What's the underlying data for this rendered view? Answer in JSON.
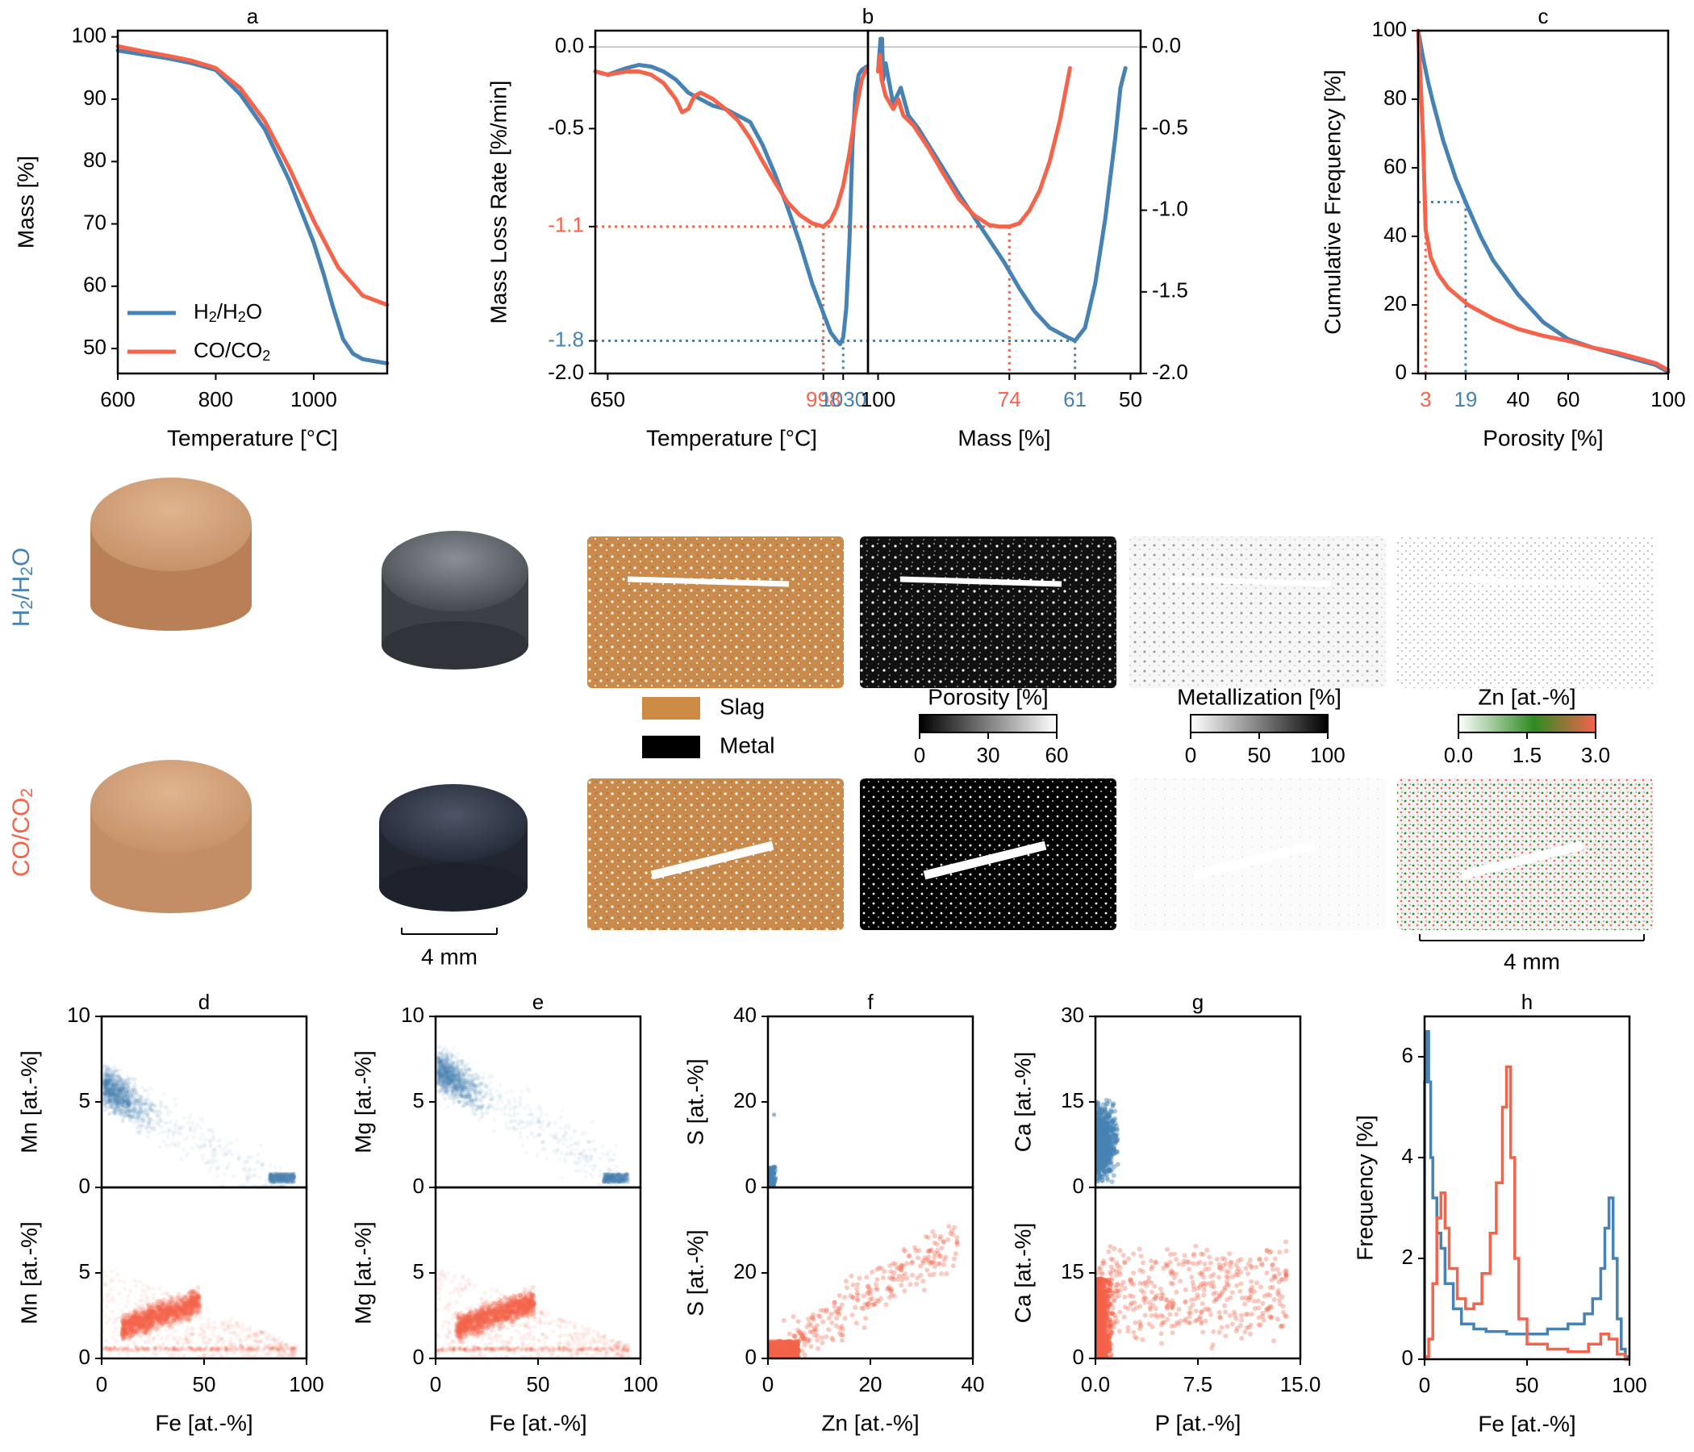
{
  "colors": {
    "h2": "#4682b4",
    "co": "#f4634a",
    "axis": "#000000",
    "slag": "#cd8a45",
    "metal": "#000000"
  },
  "chart_data": [
    {
      "id": "a",
      "type": "line",
      "title": "a",
      "xlabel": "Temperature [°C]",
      "ylabel": "Mass [%]",
      "xlim": [
        600,
        1150
      ],
      "ylim": [
        46,
        101
      ],
      "xticks": [
        "600",
        "800",
        "1000"
      ],
      "xtick_values": [
        600,
        800,
        1000
      ],
      "yticks": [
        "50",
        "60",
        "70",
        "80",
        "90",
        "100"
      ],
      "ytick_values": [
        50,
        60,
        70,
        80,
        90,
        100
      ],
      "legend": [
        {
          "base": "H",
          "sub1": "2",
          "mid": "/H",
          "sub2": "2",
          "tail": "O",
          "color": "#4682b4"
        },
        {
          "base": "CO/CO",
          "sub1": "2",
          "mid": "",
          "sub2": "",
          "tail": "",
          "color": "#f4634a"
        }
      ],
      "series": [
        {
          "name": "H2/H2O",
          "color": "#4682b4",
          "x": [
            600,
            650,
            700,
            750,
            800,
            850,
            900,
            950,
            1000,
            1020,
            1040,
            1060,
            1080,
            1100,
            1150
          ],
          "y": [
            97.8,
            97.2,
            96.6,
            95.8,
            94.7,
            90.8,
            85.2,
            77.0,
            67.0,
            62.0,
            56.5,
            51.5,
            49.2,
            48.3,
            47.6
          ]
        },
        {
          "name": "CO/CO2",
          "color": "#f4634a",
          "x": [
            600,
            650,
            700,
            750,
            800,
            850,
            900,
            950,
            1000,
            1050,
            1100,
            1150
          ],
          "y": [
            98.5,
            97.7,
            97.0,
            96.2,
            95.0,
            91.8,
            86.5,
            79.0,
            70.5,
            63.0,
            58.5,
            57.0
          ]
        }
      ]
    },
    {
      "id": "b1",
      "type": "line",
      "title": "",
      "xlabel": "Temperature [°C]",
      "ylabel": "Mass Loss Rate [%/min]",
      "xlim": [
        630,
        1070
      ],
      "ylim": [
        -2.0,
        0.1
      ],
      "xticks": [
        "650"
      ],
      "xtick_values": [
        650
      ],
      "yticks": [
        "0.0",
        "-0.5",
        "-1.1",
        "-1.8",
        "-2.0"
      ],
      "ytick_values": [
        0.0,
        -0.5,
        -1.1,
        -1.8,
        -2.0
      ],
      "ytick_colors": [
        "#000000",
        "#000000",
        "#f4634a",
        "#4682b4",
        "#000000"
      ],
      "marker_ticks": [
        {
          "label": "998",
          "x": 998,
          "color": "#f4634a"
        },
        {
          "label": "1030",
          "x": 1030,
          "color": "#4682b4"
        }
      ],
      "series": [
        {
          "name": "H2/H2O",
          "color": "#4682b4",
          "x": [
            630,
            650,
            680,
            700,
            720,
            740,
            760,
            780,
            800,
            820,
            840,
            860,
            880,
            900,
            920,
            940,
            960,
            980,
            995,
            1000,
            1010,
            1020,
            1025,
            1030,
            1035,
            1040,
            1045,
            1050,
            1055,
            1060,
            1068
          ],
          "y": [
            -0.15,
            -0.17,
            -0.13,
            -0.11,
            -0.12,
            -0.15,
            -0.2,
            -0.28,
            -0.32,
            -0.36,
            -0.38,
            -0.42,
            -0.46,
            -0.6,
            -0.78,
            -0.98,
            -1.2,
            -1.45,
            -1.6,
            -1.65,
            -1.75,
            -1.8,
            -1.82,
            -1.78,
            -1.6,
            -1.2,
            -0.6,
            -0.28,
            -0.17,
            -0.14,
            -0.12
          ]
        },
        {
          "name": "CO/CO2",
          "color": "#f4634a",
          "x": [
            630,
            650,
            680,
            700,
            720,
            740,
            760,
            770,
            780,
            790,
            800,
            820,
            840,
            860,
            880,
            900,
            920,
            940,
            960,
            980,
            998,
            1010,
            1020,
            1030,
            1040,
            1050,
            1060,
            1068
          ],
          "y": [
            -0.15,
            -0.17,
            -0.15,
            -0.15,
            -0.17,
            -0.22,
            -0.32,
            -0.4,
            -0.38,
            -0.3,
            -0.28,
            -0.32,
            -0.38,
            -0.45,
            -0.56,
            -0.7,
            -0.83,
            -0.95,
            -1.03,
            -1.08,
            -1.1,
            -1.06,
            -0.98,
            -0.85,
            -0.65,
            -0.4,
            -0.2,
            -0.13
          ]
        }
      ]
    },
    {
      "id": "b2",
      "type": "line",
      "title": "b",
      "xlabel": "Mass [%]",
      "xlim": [
        102,
        48
      ],
      "ylim": [
        -2.0,
        0.1
      ],
      "xticks": [
        "100",
        "50"
      ],
      "xtick_values": [
        100,
        50
      ],
      "yticks": [
        "0.0",
        "-0.5",
        "-1.0",
        "-1.5",
        "-2.0"
      ],
      "ytick_values": [
        0.0,
        -0.5,
        -1.0,
        -1.5,
        -2.0
      ],
      "marker_ticks": [
        {
          "label": "74",
          "x": 74,
          "color": "#f4634a"
        },
        {
          "label": "61",
          "x": 61,
          "color": "#4682b4"
        }
      ],
      "series": [
        {
          "name": "H2/H2O",
          "color": "#4682b4",
          "x": [
            100,
            99.5,
            99.2,
            99,
            98.5,
            97,
            95.5,
            94,
            92,
            90,
            87,
            84,
            81,
            78,
            75,
            72,
            69,
            66,
            63,
            61,
            59,
            57,
            55,
            53,
            52,
            51
          ],
          "y": [
            -0.15,
            0.05,
            0.05,
            -0.2,
            -0.1,
            -0.35,
            -0.25,
            -0.42,
            -0.5,
            -0.6,
            -0.75,
            -0.9,
            -1.04,
            -1.18,
            -1.32,
            -1.48,
            -1.62,
            -1.72,
            -1.77,
            -1.8,
            -1.72,
            -1.45,
            -1.05,
            -0.55,
            -0.25,
            -0.13
          ]
        },
        {
          "name": "CO/CO2",
          "color": "#f4634a",
          "x": [
            100,
            99.6,
            99.3,
            98.5,
            97,
            96,
            95,
            93,
            90,
            87,
            84,
            81,
            78,
            76,
            74,
            72,
            70,
            68,
            66,
            64,
            62
          ],
          "y": [
            -0.15,
            -0.05,
            -0.2,
            -0.3,
            -0.38,
            -0.32,
            -0.42,
            -0.48,
            -0.62,
            -0.78,
            -0.93,
            -1.03,
            -1.09,
            -1.1,
            -1.1,
            -1.08,
            -1.0,
            -0.88,
            -0.7,
            -0.45,
            -0.13
          ]
        }
      ]
    },
    {
      "id": "c",
      "type": "line",
      "title": "c",
      "xlabel": "Porosity [%]",
      "ylabel": "Cumulative Frequency [%]",
      "xlim": [
        0,
        100
      ],
      "ylim": [
        0,
        100
      ],
      "xticks": [
        "40",
        "60",
        "100"
      ],
      "xtick_values": [
        40,
        60,
        100
      ],
      "yticks": [
        "0",
        "20",
        "40",
        "60",
        "80",
        "100"
      ],
      "ytick_values": [
        0,
        20,
        40,
        60,
        80,
        100
      ],
      "marker_ticks": [
        {
          "label": "3",
          "x": 3,
          "color": "#f4634a"
        },
        {
          "label": "19",
          "x": 19,
          "color": "#4682b4"
        }
      ],
      "series": [
        {
          "name": "H2/H2O",
          "color": "#4682b4",
          "x": [
            0,
            1,
            2,
            4,
            6,
            10,
            15,
            19,
            25,
            30,
            40,
            50,
            60,
            70,
            80,
            90,
            95,
            100
          ],
          "y": [
            100,
            96,
            92,
            85,
            79,
            68,
            57,
            50,
            40,
            33,
            23,
            15,
            10,
            7.5,
            5.5,
            3.5,
            2.5,
            0.5
          ]
        },
        {
          "name": "CO/CO2",
          "color": "#f4634a",
          "x": [
            0,
            1,
            2,
            3,
            5,
            8,
            12,
            16,
            20,
            30,
            40,
            50,
            60,
            70,
            80,
            90,
            95,
            100
          ],
          "y": [
            100,
            85,
            68,
            42,
            34,
            29,
            25,
            22.5,
            20,
            16,
            13,
            11,
            9.5,
            7.5,
            6,
            4,
            3,
            1
          ]
        }
      ]
    },
    {
      "id": "d",
      "type": "scatter",
      "title": "d",
      "xlabel": "Fe [at.-%]",
      "ylabel": "Mn [at.-%]",
      "xlim": [
        0,
        100
      ],
      "xticks": [
        "0",
        "50",
        "100"
      ],
      "xtick_values": [
        0,
        50,
        100
      ],
      "top": {
        "ylim": [
          0,
          10
        ],
        "yticks": [
          "0",
          "5",
          "10"
        ],
        "ytick_values": [
          0,
          5,
          10
        ],
        "color": "#4682b4"
      },
      "bottom": {
        "ylim": [
          0,
          10
        ],
        "yticks": [
          "0",
          "5"
        ],
        "ytick_values": [
          0,
          5
        ],
        "color": "#f4634a"
      }
    },
    {
      "id": "e",
      "type": "scatter",
      "title": "e",
      "xlabel": "Fe [at.-%]",
      "ylabel": "Mg [at.-%]",
      "xlim": [
        0,
        100
      ],
      "xticks": [
        "0",
        "50",
        "100"
      ],
      "xtick_values": [
        0,
        50,
        100
      ],
      "top": {
        "ylim": [
          0,
          10
        ],
        "yticks": [
          "0",
          "5",
          "10"
        ],
        "ytick_values": [
          0,
          5,
          10
        ],
        "color": "#4682b4"
      },
      "bottom": {
        "ylim": [
          0,
          10
        ],
        "yticks": [
          "0",
          "5"
        ],
        "ytick_values": [
          0,
          5
        ],
        "color": "#f4634a"
      }
    },
    {
      "id": "f",
      "type": "scatter",
      "title": "f",
      "xlabel": "Zn [at.-%]",
      "ylabel": "S [at.-%]",
      "xlim": [
        0,
        40
      ],
      "xticks": [
        "0",
        "20",
        "40"
      ],
      "xtick_values": [
        0,
        20,
        40
      ],
      "top": {
        "ylim": [
          0,
          40
        ],
        "yticks": [
          "0",
          "20",
          "40"
        ],
        "ytick_values": [
          0,
          20,
          40
        ],
        "color": "#4682b4"
      },
      "bottom": {
        "ylim": [
          0,
          40
        ],
        "yticks": [
          "0",
          "20"
        ],
        "ytick_values": [
          0,
          20
        ],
        "color": "#f4634a"
      }
    },
    {
      "id": "g",
      "type": "scatter",
      "title": "g",
      "xlabel": "P [at.-%]",
      "ylabel": "Ca [at.-%]",
      "xlim": [
        0,
        15
      ],
      "xticks": [
        "0.0",
        "7.5",
        "15.0"
      ],
      "xtick_values": [
        0,
        7.5,
        15
      ],
      "top": {
        "ylim": [
          0,
          30
        ],
        "yticks": [
          "0",
          "15",
          "30"
        ],
        "ytick_values": [
          0,
          15,
          30
        ],
        "color": "#4682b4"
      },
      "bottom": {
        "ylim": [
          0,
          30
        ],
        "yticks": [
          "0",
          "15"
        ],
        "ytick_values": [
          0,
          15
        ],
        "color": "#f4634a"
      }
    },
    {
      "id": "h",
      "type": "line",
      "title": "h",
      "xlabel": "Fe [at.-%]",
      "ylabel": "Frequency [%]",
      "xlim": [
        0,
        100
      ],
      "ylim": [
        0,
        6.8
      ],
      "xticks": [
        "0",
        "50",
        "100"
      ],
      "xtick_values": [
        0,
        50,
        100
      ],
      "yticks": [
        "0",
        "2",
        "4",
        "6"
      ],
      "ytick_values": [
        0,
        2,
        4,
        6
      ],
      "series": [
        {
          "name": "H2/H2O",
          "color": "#4682b4",
          "x": [
            0,
            1,
            2,
            3,
            4,
            6,
            8,
            10,
            14,
            18,
            24,
            30,
            40,
            50,
            60,
            70,
            78,
            82,
            86,
            88,
            90,
            92,
            94,
            96,
            98
          ],
          "y": [
            5.5,
            6.5,
            5.5,
            4.0,
            3.2,
            2.5,
            2.2,
            1.5,
            1.0,
            0.7,
            0.6,
            0.55,
            0.5,
            0.5,
            0.6,
            0.7,
            0.9,
            1.2,
            1.8,
            2.6,
            3.2,
            2.0,
            0.8,
            0.2,
            0.05
          ]
        },
        {
          "name": "CO/CO2",
          "color": "#f4634a",
          "x": [
            0,
            2,
            4,
            6,
            8,
            10,
            12,
            16,
            20,
            24,
            28,
            32,
            35,
            38,
            40,
            42,
            44,
            46,
            50,
            60,
            70,
            80,
            86,
            90,
            94,
            98
          ],
          "y": [
            0.05,
            0.4,
            1.5,
            2.8,
            3.3,
            2.6,
            1.8,
            1.2,
            1.0,
            1.1,
            1.7,
            2.5,
            3.5,
            5.0,
            5.8,
            4.0,
            2.0,
            0.8,
            0.3,
            0.2,
            0.15,
            0.3,
            0.5,
            0.4,
            0.1,
            0.0
          ]
        }
      ]
    }
  ],
  "middle": {
    "row_labels": [
      {
        "base": "H",
        "sub1": "2",
        "mid": "/H",
        "sub2": "2",
        "tail": "O",
        "color": "#4682b4"
      },
      {
        "base": "CO/CO",
        "sub1": "2",
        "mid": "",
        "sub2": "",
        "tail": "",
        "color": "#f4634a"
      }
    ],
    "legend": [
      {
        "label": "Slag",
        "color": "#cd8a45"
      },
      {
        "label": "Metal",
        "color": "#000000"
      }
    ],
    "colorbars": [
      {
        "title": "Porosity [%]",
        "ticks": [
          "0",
          "30",
          "60"
        ],
        "from": "#000000",
        "to": "#ffffff"
      },
      {
        "title": "Metallization [%]",
        "ticks": [
          "0",
          "50",
          "100"
        ],
        "from": "#ffffff",
        "to": "#000000"
      },
      {
        "title": "Zn [at.-%]",
        "ticks": [
          "0.0",
          "1.5",
          "3.0"
        ],
        "from": "#ffffff",
        "mid": "#2e8b22",
        "to": "#f4634a"
      }
    ],
    "scale_bars": [
      "4 mm",
      "4 mm"
    ]
  }
}
